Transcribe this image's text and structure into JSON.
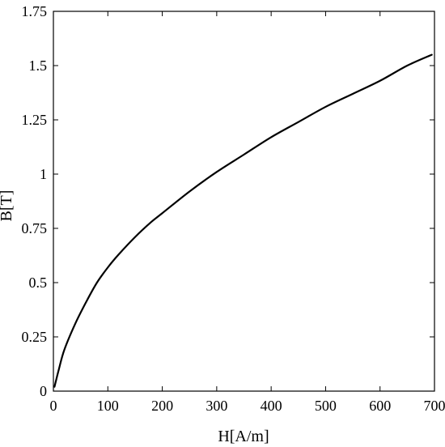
{
  "chart_data": {
    "type": "line",
    "xlabel": "H[A/m]",
    "ylabel": "B[T]",
    "xlim": [
      0,
      700
    ],
    "ylim": [
      0,
      1.75
    ],
    "x_ticks": [
      0,
      100,
      200,
      300,
      400,
      500,
      600,
      700
    ],
    "y_ticks": [
      0,
      0.25,
      0.5,
      0.75,
      1,
      1.25,
      1.5,
      1.75
    ],
    "y_tick_labels": [
      "0",
      "0.25",
      "0.5",
      "0.75",
      "1",
      "1.25",
      "1.5",
      "1.75"
    ],
    "grid": false,
    "series": [
      {
        "x": [
          2,
          10,
          20,
          40,
          60,
          80,
          100,
          120,
          150,
          180,
          200,
          250,
          300,
          350,
          400,
          450,
          500,
          550,
          600,
          650,
          695
        ],
        "y": [
          0.02,
          0.1,
          0.19,
          0.31,
          0.41,
          0.5,
          0.57,
          0.63,
          0.71,
          0.78,
          0.82,
          0.92,
          1.01,
          1.09,
          1.17,
          1.24,
          1.31,
          1.37,
          1.43,
          1.5,
          1.55
        ],
        "color": "#000000"
      }
    ]
  }
}
